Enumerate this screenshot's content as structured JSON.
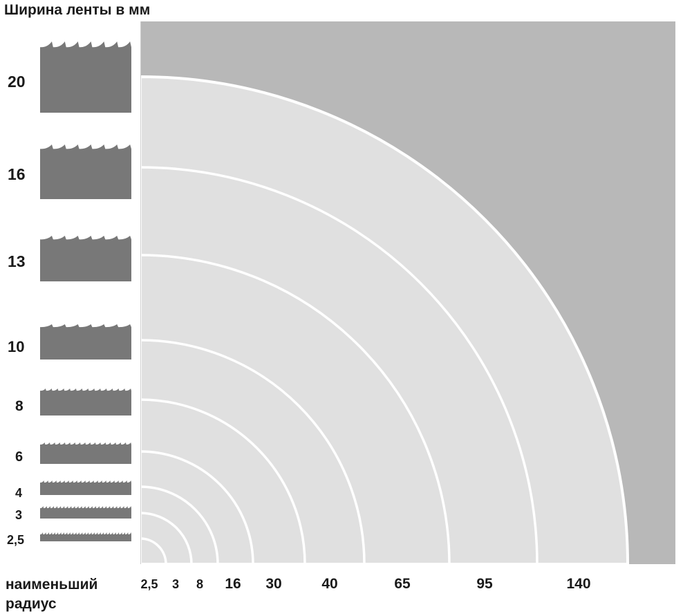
{
  "header": {
    "title": "Ширина ленты в мм"
  },
  "footer": {
    "label_line1": "наименьший",
    "label_line2": "радиус"
  },
  "colors": {
    "background_outer": "#b8b8b8",
    "background_inner": "#e0e0e0",
    "arc": "#ffffff",
    "blade": "#787878",
    "text": "#1a1a1a"
  },
  "bands": [
    {
      "width": "20",
      "radius": "140"
    },
    {
      "width": "16",
      "radius": "95"
    },
    {
      "width": "13",
      "radius": "65"
    },
    {
      "width": "10",
      "radius": "40"
    },
    {
      "width": "8",
      "radius": "30"
    },
    {
      "width": "6",
      "radius": "16"
    },
    {
      "width": "4",
      "radius": "8"
    },
    {
      "width": "3",
      "radius": "3"
    },
    {
      "width": "2,5",
      "radius": "2,5"
    }
  ]
}
